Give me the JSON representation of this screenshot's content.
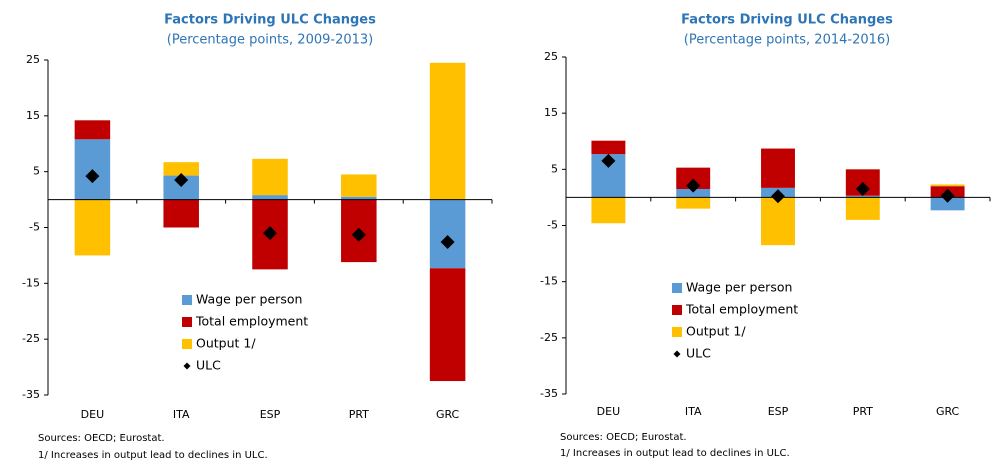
{
  "chart_data": [
    {
      "type": "bar",
      "title": "Factors Driving ULC Changes",
      "subtitle": "(Percentage points, 2009-2013)",
      "categories": [
        "DEU",
        "ITA",
        "ESP",
        "PRT",
        "GRC"
      ],
      "series": [
        {
          "name": "Wage per person",
          "color": "#5b9bd5",
          "values": [
            10.8,
            4.3,
            0.8,
            0.5,
            -12.3
          ]
        },
        {
          "name": "Total employment",
          "color": "#c00000",
          "values": [
            3.4,
            -5,
            -12.5,
            -11.2,
            -20.2
          ]
        },
        {
          "name": "Output 1/",
          "color": "#ffc000",
          "values": [
            -10,
            2.4,
            6.5,
            4,
            24.5
          ]
        },
        {
          "name": "ULC",
          "color": "#000000",
          "marker": "diamond",
          "values": [
            4.2,
            3.5,
            -6,
            -6.3,
            -7.6
          ]
        }
      ],
      "ylim": [
        -35,
        25
      ],
      "yticks": [
        25,
        15,
        5,
        -5,
        -15,
        -25,
        -35
      ],
      "notes": [
        "Sources: OECD; Eurostat.",
        "1/ Increases in output lead to declines in ULC."
      ]
    },
    {
      "type": "bar",
      "title": "Factors Driving ULC Changes",
      "subtitle": "(Percentage points, 2014-2016)",
      "categories": [
        "DEU",
        "ITA",
        "ESP",
        "PRT",
        "GRC"
      ],
      "series": [
        {
          "name": "Wage per person",
          "color": "#5b9bd5",
          "values": [
            7.7,
            1.5,
            1.7,
            0.3,
            -2.3
          ]
        },
        {
          "name": "Total employment",
          "color": "#c00000",
          "values": [
            2.4,
            3.8,
            7,
            4.7,
            2
          ]
        },
        {
          "name": "Output 1/",
          "color": "#ffc000",
          "values": [
            -4.6,
            -2,
            -8.5,
            -4,
            0.3
          ]
        },
        {
          "name": "ULC",
          "color": "#000000",
          "marker": "diamond",
          "values": [
            6.5,
            2.1,
            0.2,
            1.5,
            0.3
          ]
        }
      ],
      "ylim": [
        -35,
        25
      ],
      "yticks": [
        25,
        15,
        5,
        -5,
        -15,
        -25,
        -35
      ],
      "notes": [
        "Sources: OECD; Eurostat.",
        "1/ Increases in output lead to declines in ULC."
      ]
    }
  ]
}
